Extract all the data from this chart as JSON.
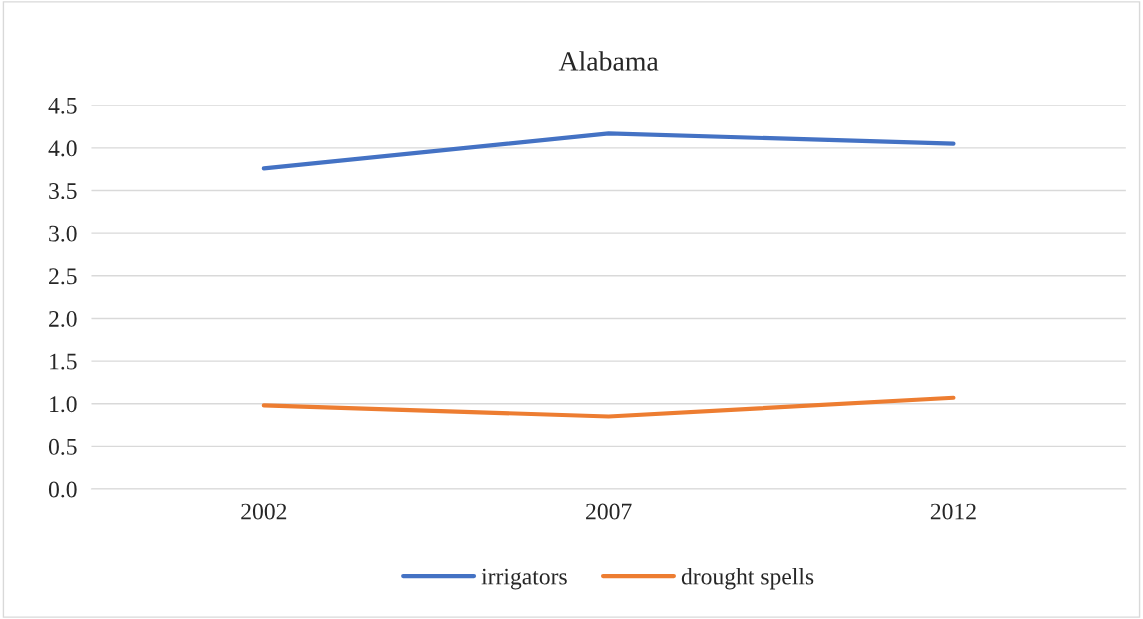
{
  "chart_data": {
    "type": "line",
    "title": "Alabama",
    "categories": [
      "2002",
      "2007",
      "2012"
    ],
    "series": [
      {
        "name": "irrigators",
        "color": "#4472c4",
        "values": [
          3.76,
          4.17,
          4.05
        ]
      },
      {
        "name": "drought spells",
        "color": "#ed7d31",
        "values": [
          0.98,
          0.85,
          1.07
        ]
      }
    ],
    "ylim": [
      0,
      4.5
    ],
    "yticks": [
      {
        "value": 0,
        "label": "0.0"
      },
      {
        "value": 0.5,
        "label": "0.5"
      },
      {
        "value": 1,
        "label": "1.0"
      },
      {
        "value": 1.5,
        "label": "1.5"
      },
      {
        "value": 2,
        "label": "2.0"
      },
      {
        "value": 2.5,
        "label": "2.5"
      },
      {
        "value": 3,
        "label": "3.0"
      },
      {
        "value": 3.5,
        "label": "3.5"
      },
      {
        "value": 4,
        "label": "4.0"
      },
      {
        "value": 4.5,
        "label": "4.5"
      }
    ],
    "grid": "y",
    "legend": "bottom",
    "marker": "none",
    "line_style": "solid"
  }
}
